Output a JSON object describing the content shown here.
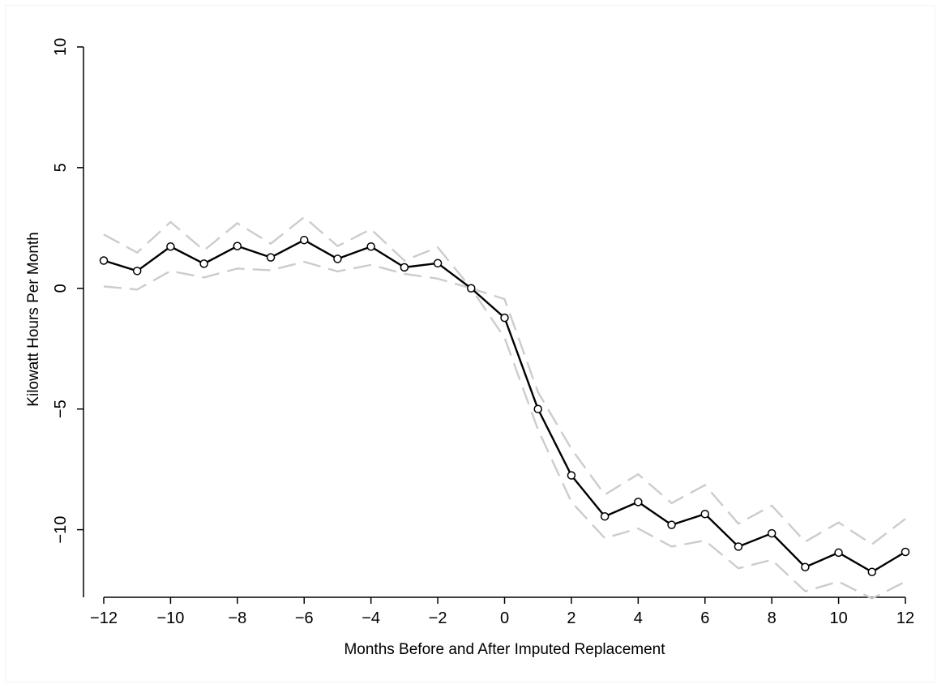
{
  "chart_data": {
    "type": "line",
    "title": "",
    "xlabel": "Months Before and After Imputed Replacement",
    "ylabel": "Kilowatt Hours Per Month",
    "xlim": [
      -12,
      12
    ],
    "ylim": [
      -12.8,
      10.3
    ],
    "x_ticks": [
      -12,
      -10,
      -8,
      -6,
      -4,
      -2,
      0,
      2,
      4,
      6,
      8,
      10,
      12
    ],
    "x_tick_labels": [
      "−12",
      "−10",
      "−8",
      "−6",
      "−4",
      "−2",
      "0",
      "2",
      "4",
      "6",
      "8",
      "10",
      "12"
    ],
    "y_ticks": [
      10,
      5,
      0,
      -5,
      -10
    ],
    "y_tick_labels": [
      "10",
      "5",
      "0",
      "−5",
      "−10"
    ],
    "grid": false,
    "legend": "none",
    "x": [
      -12,
      -11,
      -10,
      -9,
      -8,
      -7,
      -6,
      -5,
      -4,
      -3,
      -2,
      -1,
      0,
      1,
      2,
      3,
      4,
      5,
      6,
      7,
      8,
      9,
      10,
      11,
      12
    ],
    "series": [
      {
        "role": "estimate",
        "color": "#000000",
        "style": "solid-with-circle-markers",
        "values": [
          1.15,
          0.72,
          1.73,
          1.02,
          1.75,
          1.28,
          2.0,
          1.22,
          1.73,
          0.87,
          1.04,
          0.0,
          -1.22,
          -5.0,
          -7.75,
          -9.45,
          -8.85,
          -9.8,
          -9.35,
          -10.7,
          -10.15,
          -11.55,
          -10.95,
          -11.75,
          -10.92
        ]
      },
      {
        "role": "upper-ci",
        "color": "#cccccc",
        "style": "dashed",
        "values": [
          2.23,
          1.48,
          2.75,
          1.57,
          2.7,
          1.85,
          2.95,
          1.75,
          2.45,
          1.15,
          1.7,
          0.0,
          -0.45,
          -4.3,
          -6.65,
          -8.55,
          -7.7,
          -8.9,
          -8.15,
          -9.75,
          -9.0,
          -10.5,
          -9.7,
          -10.6,
          -9.55
        ]
      },
      {
        "role": "lower-ci",
        "color": "#cccccc",
        "style": "dashed",
        "values": [
          0.08,
          -0.05,
          0.72,
          0.45,
          0.82,
          0.75,
          1.1,
          0.7,
          0.97,
          0.6,
          0.4,
          0.0,
          -2.05,
          -5.85,
          -8.85,
          -10.35,
          -9.95,
          -10.7,
          -10.45,
          -11.6,
          -11.25,
          -12.55,
          -12.15,
          -12.85,
          -12.15
        ]
      }
    ]
  }
}
